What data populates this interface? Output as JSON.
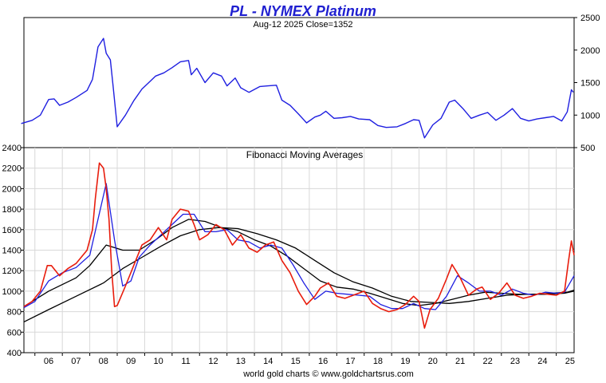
{
  "header": {
    "title": "PL  -  NYMEX Platinum",
    "subtitle": "Aug-12  2025   Close=1352",
    "title_color": "#1f1fd0"
  },
  "footer": {
    "credit": "world gold charts © www.goldchartsrus.com"
  },
  "chart_data": [
    {
      "type": "line",
      "name": "price-panel",
      "title": "",
      "ylim": [
        500,
        2500
      ],
      "yticks": [
        500,
        1000,
        1500,
        2000,
        2500
      ],
      "y_axis_side": "right",
      "series": [
        {
          "name": "",
          "color": "#1f1fe0",
          "x": [
            2005.5,
            2005.9,
            2006.2,
            2006.5,
            2006.7,
            2006.9,
            2007.2,
            2007.5,
            2007.9,
            2008.1,
            2008.2,
            2008.3,
            2008.5,
            2008.6,
            2008.75,
            2008.85,
            2009.0,
            2009.3,
            2009.6,
            2009.9,
            2010.2,
            2010.4,
            2010.7,
            2011.0,
            2011.3,
            2011.6,
            2011.7,
            2011.9,
            2012.2,
            2012.5,
            2012.8,
            2013.0,
            2013.3,
            2013.5,
            2013.8,
            2014.2,
            2014.5,
            2014.8,
            2015.0,
            2015.3,
            2015.6,
            2015.9,
            2016.2,
            2016.4,
            2016.6,
            2016.9,
            2017.2,
            2017.5,
            2017.8,
            2018.2,
            2018.5,
            2018.8,
            2019.2,
            2019.5,
            2019.8,
            2020.0,
            2020.2,
            2020.5,
            2020.8,
            2021.1,
            2021.3,
            2021.6,
            2021.9,
            2022.2,
            2022.5,
            2022.8,
            2023.1,
            2023.4,
            2023.7,
            2024.0,
            2024.3,
            2024.6,
            2024.9,
            2025.2,
            2025.4,
            2025.55,
            2025.62
          ],
          "values": [
            870,
            920,
            1000,
            1240,
            1250,
            1150,
            1200,
            1270,
            1380,
            1550,
            1800,
            2050,
            2180,
            1950,
            1850,
            1450,
            820,
            1000,
            1220,
            1400,
            1520,
            1600,
            1650,
            1730,
            1820,
            1840,
            1620,
            1720,
            1500,
            1650,
            1600,
            1450,
            1570,
            1420,
            1350,
            1440,
            1450,
            1460,
            1230,
            1150,
            1020,
            880,
            970,
            1000,
            1060,
            950,
            960,
            980,
            940,
            930,
            840,
            810,
            820,
            870,
            930,
            920,
            650,
            850,
            950,
            1200,
            1230,
            1100,
            950,
            1000,
            1040,
            920,
            1000,
            1100,
            950,
            910,
            940,
            960,
            980,
            910,
            1050,
            1390,
            1352
          ]
        }
      ]
    },
    {
      "type": "line",
      "name": "fibonacci-panel",
      "title": "Fibonacci Moving Averages",
      "ylim": [
        400,
        2400
      ],
      "yticks": [
        400,
        600,
        800,
        1000,
        1200,
        1400,
        1600,
        1800,
        2000,
        2200,
        2400
      ],
      "y_axis_side": "left",
      "xlim": [
        2005.6,
        2025.65
      ],
      "xticks": [
        "06",
        "07",
        "08",
        "09",
        "10",
        "11",
        "12",
        "13",
        "14",
        "15",
        "16",
        "17",
        "18",
        "19",
        "20",
        "21",
        "22",
        "23",
        "24",
        "25"
      ],
      "grid": true,
      "series": [
        {
          "name": "",
          "color": "#e81c0c",
          "x": [
            2005.6,
            2005.9,
            2006.2,
            2006.45,
            2006.6,
            2006.9,
            2007.2,
            2007.5,
            2007.9,
            2008.1,
            2008.2,
            2008.35,
            2008.5,
            2008.6,
            2008.7,
            2008.8,
            2008.9,
            2009.0,
            2009.3,
            2009.6,
            2009.9,
            2010.2,
            2010.5,
            2010.8,
            2011.0,
            2011.3,
            2011.6,
            2011.8,
            2012.0,
            2012.3,
            2012.6,
            2012.9,
            2013.2,
            2013.5,
            2013.8,
            2014.1,
            2014.4,
            2014.7,
            2015.0,
            2015.3,
            2015.6,
            2015.9,
            2016.2,
            2016.4,
            2016.7,
            2017.0,
            2017.3,
            2017.6,
            2018.0,
            2018.3,
            2018.6,
            2018.9,
            2019.2,
            2019.5,
            2019.8,
            2020.0,
            2020.2,
            2020.4,
            2020.7,
            2021.0,
            2021.2,
            2021.5,
            2021.8,
            2022.1,
            2022.3,
            2022.6,
            2022.9,
            2023.2,
            2023.5,
            2023.8,
            2024.1,
            2024.4,
            2024.7,
            2025.0,
            2025.3,
            2025.45,
            2025.55,
            2025.65
          ],
          "values": [
            850,
            900,
            1000,
            1250,
            1250,
            1150,
            1220,
            1270,
            1400,
            1600,
            1900,
            2250,
            2200,
            2000,
            1700,
            1200,
            850,
            860,
            1050,
            1250,
            1450,
            1500,
            1620,
            1500,
            1700,
            1800,
            1780,
            1650,
            1500,
            1550,
            1650,
            1600,
            1450,
            1550,
            1420,
            1380,
            1450,
            1480,
            1300,
            1180,
            1000,
            870,
            950,
            1030,
            1080,
            950,
            930,
            960,
            1000,
            880,
            830,
            800,
            820,
            870,
            950,
            900,
            640,
            820,
            930,
            1120,
            1260,
            1130,
            960,
            1020,
            1040,
            920,
            980,
            1080,
            960,
            930,
            950,
            980,
            970,
            960,
            1000,
            1300,
            1490,
            1350
          ]
        },
        {
          "name": "",
          "color": "#1f1fe0",
          "x": [
            2005.6,
            2006.0,
            2006.5,
            2007.0,
            2007.5,
            2008.0,
            2008.3,
            2008.6,
            2008.9,
            2009.2,
            2009.5,
            2009.8,
            2010.2,
            2010.6,
            2011.0,
            2011.4,
            2011.8,
            2012.2,
            2012.6,
            2013.0,
            2013.4,
            2013.8,
            2014.2,
            2014.6,
            2015.0,
            2015.4,
            2015.8,
            2016.2,
            2016.6,
            2017.0,
            2017.4,
            2017.8,
            2018.2,
            2018.6,
            2019.0,
            2019.4,
            2019.8,
            2020.2,
            2020.6,
            2021.0,
            2021.4,
            2021.8,
            2022.2,
            2022.6,
            2023.0,
            2023.4,
            2023.8,
            2024.2,
            2024.6,
            2025.0,
            2025.3,
            2025.65
          ],
          "values": [
            840,
            900,
            1100,
            1180,
            1230,
            1350,
            1700,
            2050,
            1500,
            1050,
            1100,
            1330,
            1450,
            1550,
            1650,
            1750,
            1750,
            1580,
            1580,
            1600,
            1500,
            1480,
            1420,
            1450,
            1420,
            1260,
            1080,
            920,
            1000,
            980,
            970,
            960,
            950,
            870,
            830,
            830,
            880,
            830,
            820,
            950,
            1150,
            1080,
            1000,
            1000,
            960,
            1020,
            980,
            960,
            990,
            980,
            990,
            1150
          ]
        },
        {
          "name": "",
          "color": "#000000",
          "x": [
            2005.6,
            2006.5,
            2007.5,
            2008.0,
            2008.6,
            2009.2,
            2009.8,
            2010.4,
            2011.0,
            2011.6,
            2012.2,
            2012.8,
            2013.4,
            2014.0,
            2014.6,
            2015.2,
            2015.8,
            2016.4,
            2017.0,
            2017.6,
            2018.2,
            2018.8,
            2019.4,
            2020.0,
            2020.6,
            2021.2,
            2021.8,
            2022.4,
            2023.0,
            2023.6,
            2024.2,
            2024.8,
            2025.4,
            2025.65
          ],
          "values": [
            850,
            1000,
            1130,
            1250,
            1450,
            1400,
            1400,
            1500,
            1620,
            1700,
            1680,
            1620,
            1580,
            1500,
            1440,
            1340,
            1220,
            1100,
            1040,
            1020,
            980,
            930,
            880,
            860,
            880,
            920,
            960,
            990,
            980,
            970,
            970,
            980,
            990,
            1010
          ]
        },
        {
          "name": "",
          "color": "#000000",
          "x": [
            2005.6,
            2006.5,
            2007.5,
            2008.5,
            2009.2,
            2009.9,
            2010.6,
            2011.3,
            2012.0,
            2012.7,
            2013.4,
            2014.1,
            2014.8,
            2015.5,
            2016.2,
            2016.9,
            2017.6,
            2018.3,
            2019.0,
            2019.7,
            2020.4,
            2021.1,
            2021.8,
            2022.5,
            2023.2,
            2023.9,
            2024.6,
            2025.3,
            2025.65
          ],
          "values": [
            700,
            820,
            950,
            1080,
            1220,
            1330,
            1440,
            1540,
            1600,
            1620,
            1610,
            1560,
            1500,
            1420,
            1300,
            1180,
            1090,
            1030,
            950,
            900,
            890,
            880,
            900,
            930,
            960,
            970,
            970,
            980,
            1000
          ]
        }
      ]
    }
  ]
}
